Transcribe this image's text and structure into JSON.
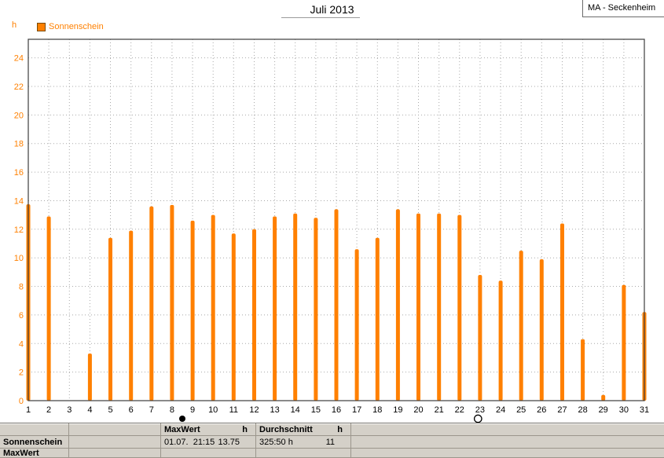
{
  "header": {
    "title": "Juli 2013",
    "station": "MA - Seckenheim"
  },
  "chart_data": {
    "type": "bar",
    "title": "Juli 2013",
    "legend": "Sonnenschein",
    "unit_label": "h",
    "ylabel": "h",
    "xlabel": "",
    "categories": [
      1,
      2,
      3,
      4,
      5,
      6,
      7,
      8,
      9,
      10,
      11,
      12,
      13,
      14,
      15,
      16,
      17,
      18,
      19,
      20,
      21,
      22,
      23,
      24,
      25,
      26,
      27,
      28,
      29,
      30,
      31
    ],
    "values": [
      13.75,
      12.9,
      0,
      3.3,
      11.4,
      11.9,
      13.6,
      13.7,
      12.6,
      13.0,
      11.7,
      12.0,
      12.9,
      13.1,
      12.8,
      13.4,
      10.6,
      11.4,
      13.4,
      13.1,
      13.1,
      13.0,
      8.8,
      8.4,
      10.5,
      9.9,
      12.4,
      4.3,
      0.4,
      8.1,
      6.2
    ],
    "ylim": [
      0,
      25.3
    ],
    "yticks": [
      0,
      2,
      4,
      6,
      8,
      10,
      12,
      14,
      16,
      18,
      20,
      22,
      24
    ],
    "bar_color": "#FF8000",
    "grid": "dashed",
    "legend_position": "top-left",
    "moon_markers": [
      {
        "day": 8.5,
        "phase": "full"
      },
      {
        "day": 22.9,
        "phase": "new"
      }
    ]
  },
  "status_bar": {
    "element_label": "Sonnenschein",
    "next_section_label": "MaxWert",
    "max": {
      "header": "MaxWert",
      "unit": "h",
      "datetime": "01.07.  21:15",
      "value": "13.75"
    },
    "avg": {
      "header": "Durchschnitt",
      "unit": "h",
      "sum": "325:50 h",
      "value": "11"
    }
  }
}
